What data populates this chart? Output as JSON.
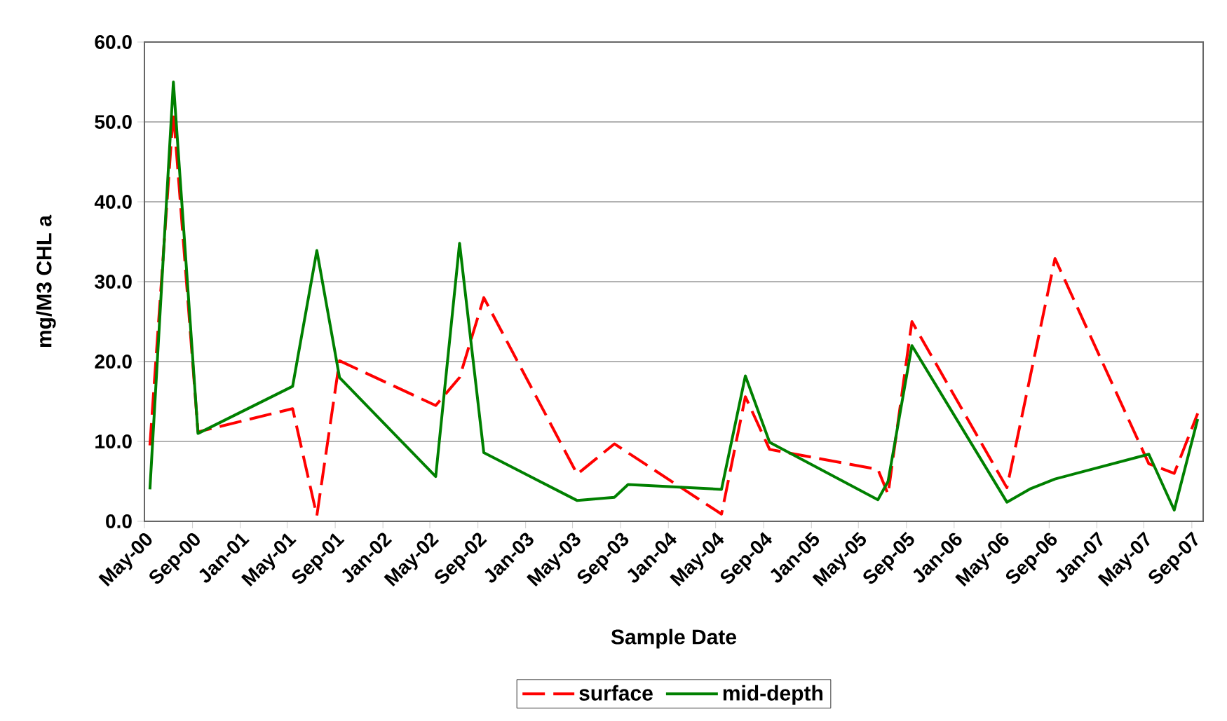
{
  "chart_data": {
    "type": "line",
    "xlabel": "Sample Date",
    "ylabel": "mg/M3 CHL a",
    "xlim": [
      "2000-05-01",
      "2007-09-30"
    ],
    "xticks": [
      {
        "value": "2000-05-01",
        "label": "May-00"
      },
      {
        "value": "2000-09-01",
        "label": "Sep-00"
      },
      {
        "value": "2001-01-01",
        "label": "Jan-01"
      },
      {
        "value": "2001-05-01",
        "label": "May-01"
      },
      {
        "value": "2001-09-01",
        "label": "Sep-01"
      },
      {
        "value": "2002-01-01",
        "label": "Jan-02"
      },
      {
        "value": "2002-05-01",
        "label": "May-02"
      },
      {
        "value": "2002-09-01",
        "label": "Sep-02"
      },
      {
        "value": "2003-01-01",
        "label": "Jan-03"
      },
      {
        "value": "2003-05-01",
        "label": "May-03"
      },
      {
        "value": "2003-09-01",
        "label": "Sep-03"
      },
      {
        "value": "2004-01-01",
        "label": "Jan-04"
      },
      {
        "value": "2004-05-01",
        "label": "May-04"
      },
      {
        "value": "2004-09-01",
        "label": "Sep-04"
      },
      {
        "value": "2005-01-01",
        "label": "Jan-05"
      },
      {
        "value": "2005-05-01",
        "label": "May-05"
      },
      {
        "value": "2005-09-01",
        "label": "Sep-05"
      },
      {
        "value": "2006-01-01",
        "label": "Jan-06"
      },
      {
        "value": "2006-05-01",
        "label": "May-06"
      },
      {
        "value": "2006-09-01",
        "label": "Sep-06"
      },
      {
        "value": "2007-01-01",
        "label": "Jan-07"
      },
      {
        "value": "2007-05-01",
        "label": "May-07"
      },
      {
        "value": "2007-09-01",
        "label": "Sep-07"
      }
    ],
    "ylim": [
      0,
      60
    ],
    "yticks": [
      {
        "value": 0,
        "label": "0.0"
      },
      {
        "value": 10,
        "label": "10.0"
      },
      {
        "value": 20,
        "label": "20.0"
      },
      {
        "value": 30,
        "label": "30.0"
      },
      {
        "value": 40,
        "label": "40.0"
      },
      {
        "value": 50,
        "label": "50.0"
      },
      {
        "value": 60,
        "label": "60.0"
      }
    ],
    "grid": "y",
    "legend": "bottom",
    "series": [
      {
        "name": "surface",
        "color": "#ff0000",
        "line_style": "dashed",
        "x": [
          "2000-05-15",
          "2000-07-14",
          "2000-09-15",
          "2001-05-15",
          "2001-07-16",
          "2001-09-12",
          "2002-05-16",
          "2002-07-16",
          "2002-09-16",
          "2003-05-13",
          "2003-08-16",
          "2004-05-16",
          "2004-07-16",
          "2004-09-16",
          "2005-06-20",
          "2005-07-16",
          "2005-09-15",
          "2006-05-16",
          "2006-09-16",
          "2007-05-14",
          "2007-07-18",
          "2007-09-16"
        ],
        "values": [
          9.5,
          51.3,
          11.2,
          14.1,
          0.7,
          20.1,
          14.5,
          18.0,
          28.0,
          5.9,
          9.7,
          0.9,
          15.6,
          9.0,
          6.5,
          3.4,
          25.0,
          4.2,
          32.9,
          7.2,
          6.0,
          13.5
        ]
      },
      {
        "name": "mid-depth",
        "color": "#008000",
        "line_style": "solid",
        "x": [
          "2000-05-15",
          "2000-07-14",
          "2000-09-15",
          "2001-05-15",
          "2001-07-16",
          "2001-09-12",
          "2002-05-16",
          "2002-07-16",
          "2002-09-16",
          "2003-05-13",
          "2003-08-16",
          "2003-09-20",
          "2004-05-16",
          "2004-07-16",
          "2004-09-16",
          "2005-06-20",
          "2005-07-16",
          "2005-09-15",
          "2006-05-16",
          "2006-07-16",
          "2006-09-16",
          "2007-05-14",
          "2007-07-18",
          "2007-09-16"
        ],
        "values": [
          4.0,
          55.0,
          11.0,
          16.9,
          33.9,
          18.0,
          5.6,
          34.8,
          8.6,
          2.6,
          3.0,
          4.6,
          4.0,
          18.2,
          9.9,
          2.7,
          5.0,
          22.0,
          2.4,
          4.1,
          5.3,
          8.4,
          1.4,
          12.8
        ]
      }
    ]
  }
}
